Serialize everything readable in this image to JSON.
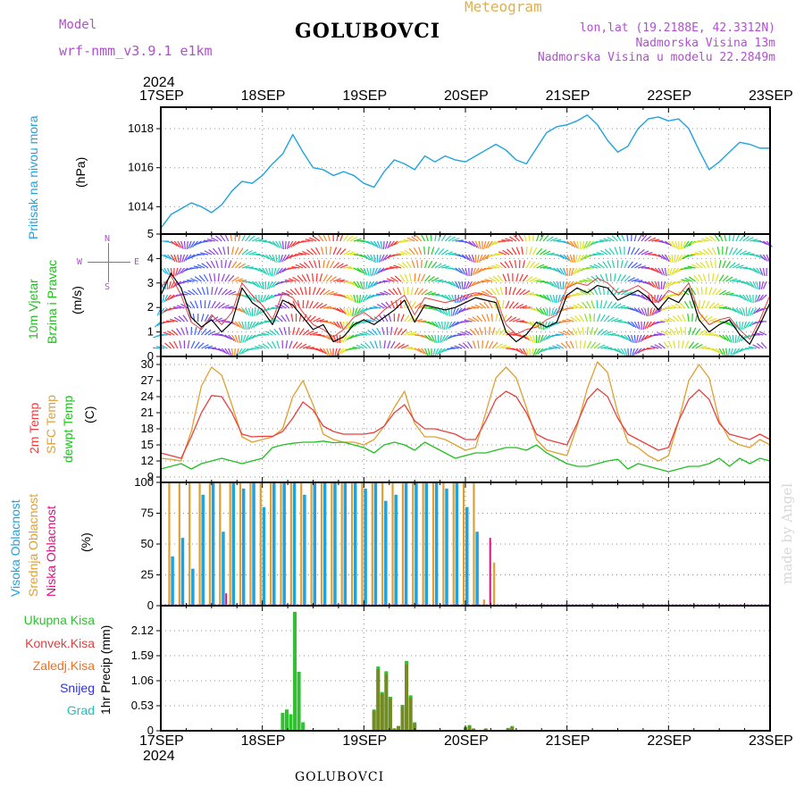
{
  "header": {
    "model_label": "Model",
    "model_name": "wrf-nmm_v3.9.1 e1km",
    "title": "GOLUBOVCI",
    "meteogram_label": "Meteogram",
    "lonlat": "lon,lat (19.2188E, 42.3312N)",
    "elevation": "Nadmorska Visina 13m",
    "model_elevation": "Nadmorska Visina u modelu 22.2849m"
  },
  "time_axis": {
    "year": "2024",
    "ticks": [
      "17SEP",
      "18SEP",
      "19SEP",
      "20SEP",
      "21SEP",
      "22SEP",
      "23SEP"
    ]
  },
  "watermark": "made by Angel",
  "footer_label": "GOLUBOVCI",
  "colors": {
    "pressure": "#1fa3e0",
    "t2m": "#e84040",
    "sfc": "#e0a030",
    "dew": "#20c020",
    "high_cloud": "#1fa3e0",
    "mid_cloud": "#e0a030",
    "low_cloud": "#e01080",
    "total_precip": "#30c030",
    "conv_precip": "#e04040",
    "frozen_precip": "#f07020",
    "snow": "#3030e0",
    "hail": "#20c0c0"
  },
  "panels": {
    "pressure": {
      "label_1": "Pritisak na nivou mora",
      "unit": "(hPa)"
    },
    "wind": {
      "label_1": "10m Vjetar",
      "label_2": "Brzina i Pravac",
      "unit": "(m/s)",
      "compass_n": "N",
      "compass_w": "W",
      "compass_e": "E",
      "compass_s": "S"
    },
    "temp": {
      "label_t2m": "2m Temp",
      "label_sfc": "SFC Temp",
      "label_dew": "dewpt Temp",
      "unit": "(C)"
    },
    "cloud": {
      "label_high": "Visoka Oblacnost",
      "label_mid": "Srednja Oblacnost",
      "label_low": "Niska Oblacnost",
      "unit": "(%)"
    },
    "precip": {
      "legend": [
        "Ukupna Kisa",
        "Konvek.Kisa",
        "Zaledj.Kisa",
        "Snijeg",
        "Grad"
      ],
      "unit": "1hr Precip (mm)"
    }
  },
  "chart_data": [
    {
      "type": "line",
      "name": "sea level pressure",
      "ylabel": "Pritisak na nivou mora (hPa)",
      "ylim": [
        1012.6,
        1019.1
      ],
      "yticks": [
        1014,
        1016,
        1018
      ],
      "x_unit": "days since 17SEP 00UTC",
      "x": [
        0,
        0.1,
        0.2,
        0.3,
        0.4,
        0.5,
        0.6,
        0.7,
        0.8,
        0.9,
        1.0,
        1.1,
        1.2,
        1.3,
        1.4,
        1.5,
        1.6,
        1.7,
        1.8,
        1.9,
        2.0,
        2.1,
        2.2,
        2.3,
        2.4,
        2.5,
        2.6,
        2.7,
        2.8,
        2.9,
        3.0,
        3.1,
        3.2,
        3.3,
        3.4,
        3.5,
        3.6,
        3.7,
        3.8,
        3.9,
        4.0,
        4.1,
        4.2,
        4.3,
        4.4,
        4.5,
        4.6,
        4.7,
        4.8,
        4.9,
        5.0,
        5.1,
        5.2,
        5.3,
        5.4,
        5.5,
        5.6,
        5.7,
        5.8,
        5.9,
        6.0
      ],
      "series": [
        {
          "name": "pressure",
          "values": [
            1012.9,
            1013.6,
            1013.9,
            1014.2,
            1014.0,
            1013.7,
            1014.1,
            1014.8,
            1015.3,
            1015.2,
            1015.6,
            1016.2,
            1016.7,
            1017.7,
            1016.8,
            1016.0,
            1015.9,
            1015.6,
            1015.8,
            1015.6,
            1015.2,
            1015.0,
            1015.8,
            1016.4,
            1016.2,
            1015.9,
            1016.6,
            1016.3,
            1016.6,
            1016.4,
            1016.3,
            1016.6,
            1016.9,
            1017.2,
            1016.9,
            1016.4,
            1016.2,
            1017.0,
            1017.8,
            1018.1,
            1018.2,
            1018.4,
            1018.7,
            1018.2,
            1017.4,
            1016.8,
            1017.1,
            1018.0,
            1018.5,
            1018.6,
            1018.4,
            1018.5,
            1018.0,
            1016.9,
            1015.9,
            1016.3,
            1016.8,
            1017.3,
            1017.2,
            1017.0,
            1017.0
          ]
        }
      ]
    },
    {
      "type": "line",
      "name": "10m wind speed",
      "ylabel": "10m Vjetar Brzina i Pravac (m/s)",
      "ylim": [
        0,
        5
      ],
      "yticks": [
        0,
        1,
        2,
        3,
        4,
        5
      ],
      "x": [
        0,
        0.1,
        0.2,
        0.3,
        0.4,
        0.5,
        0.6,
        0.7,
        0.8,
        0.9,
        1.0,
        1.1,
        1.2,
        1.3,
        1.4,
        1.5,
        1.6,
        1.7,
        1.8,
        1.9,
        2.0,
        2.1,
        2.2,
        2.3,
        2.4,
        2.5,
        2.6,
        2.7,
        2.8,
        2.9,
        3.0,
        3.1,
        3.2,
        3.3,
        3.4,
        3.5,
        3.6,
        3.7,
        3.8,
        3.9,
        4.0,
        4.1,
        4.2,
        4.3,
        4.4,
        4.5,
        4.6,
        4.7,
        4.8,
        4.9,
        5.0,
        5.1,
        5.2,
        5.3,
        5.4,
        5.5,
        5.6,
        5.7,
        5.8,
        5.9,
        6.0
      ],
      "series": [
        {
          "name": "speed",
          "values": [
            2.5,
            3.4,
            2.8,
            1.6,
            1.2,
            1.5,
            1.0,
            1.4,
            2.8,
            2.2,
            1.9,
            1.3,
            2.3,
            2.1,
            1.6,
            1.1,
            1.3,
            0.6,
            0.8,
            1.3,
            1.5,
            1.3,
            1.6,
            1.9,
            2.3,
            1.4,
            2.1,
            2.0,
            1.9,
            2.0,
            2.2,
            2.4,
            2.3,
            2.2,
            1.0,
            0.6,
            0.9,
            1.4,
            1.2,
            1.4,
            2.5,
            2.8,
            2.6,
            2.9,
            2.8,
            2.3,
            2.5,
            2.7,
            2.4,
            1.9,
            2.4,
            2.2,
            2.8,
            1.5,
            1.0,
            1.3,
            1.5,
            0.9,
            0.5,
            1.3,
            2.2
          ]
        },
        {
          "name": "gust",
          "values": [
            2.8,
            3.3,
            2.5,
            1.4,
            1.1,
            1.7,
            1.3,
            1.8,
            3.0,
            2.5,
            2.1,
            1.5,
            2.6,
            2.4,
            1.8,
            1.3,
            1.1,
            0.8,
            1.1,
            1.6,
            1.8,
            1.5,
            1.9,
            2.2,
            2.5,
            1.7,
            2.4,
            2.3,
            2.2,
            2.3,
            2.5,
            2.6,
            2.5,
            2.4,
            1.3,
            0.9,
            1.1,
            1.2,
            1.5,
            1.7,
            2.8,
            3.0,
            2.9,
            3.2,
            3.0,
            2.6,
            2.7,
            2.9,
            2.6,
            2.2,
            2.7,
            2.5,
            3.0,
            1.8,
            1.3,
            1.5,
            1.6,
            1.1,
            0.7,
            1.5,
            2.5
          ]
        }
      ]
    },
    {
      "type": "line",
      "name": "temperature",
      "ylabel": "2m Temp / SFC Temp / dewpt Temp (C)",
      "ylim": [
        8,
        31.5
      ],
      "yticks": [
        9,
        12,
        15,
        18,
        21,
        24,
        27,
        30
      ],
      "x": [
        0,
        0.1,
        0.2,
        0.3,
        0.4,
        0.5,
        0.6,
        0.7,
        0.8,
        0.9,
        1.0,
        1.1,
        1.2,
        1.3,
        1.4,
        1.5,
        1.6,
        1.7,
        1.8,
        1.9,
        2.0,
        2.1,
        2.2,
        2.3,
        2.4,
        2.5,
        2.6,
        2.7,
        2.8,
        2.9,
        3.0,
        3.1,
        3.2,
        3.3,
        3.4,
        3.5,
        3.6,
        3.7,
        3.8,
        3.9,
        4.0,
        4.1,
        4.2,
        4.3,
        4.4,
        4.5,
        4.6,
        4.7,
        4.8,
        4.9,
        5.0,
        5.1,
        5.2,
        5.3,
        5.4,
        5.5,
        5.6,
        5.7,
        5.8,
        5.9,
        6.0
      ],
      "series": [
        {
          "name": "2m Temp",
          "values": [
            13.5,
            13.0,
            12.5,
            16.5,
            21.0,
            24.2,
            24.0,
            21.0,
            17.0,
            16.5,
            16.6,
            16.6,
            17.5,
            20.0,
            23.0,
            21.5,
            18.5,
            17.5,
            17.0,
            17.0,
            17.0,
            17.3,
            18.5,
            21.0,
            22.5,
            19.5,
            18.0,
            18.0,
            17.5,
            17.0,
            16.0,
            16.0,
            19.5,
            23.5,
            25.0,
            24.0,
            21.0,
            17.0,
            16.0,
            15.5,
            15.0,
            19.0,
            23.5,
            25.5,
            24.0,
            20.0,
            17.0,
            16.0,
            15.0,
            14.0,
            14.5,
            19.5,
            23.5,
            25.3,
            23.5,
            19.0,
            17.0,
            16.5,
            16.0,
            17.0,
            16.0
          ]
        },
        {
          "name": "SFC Temp",
          "values": [
            12.5,
            12.3,
            12.0,
            17.5,
            26.0,
            29.5,
            28.0,
            22.5,
            16.5,
            15.5,
            16.0,
            16.5,
            18.0,
            24.0,
            27.0,
            22.5,
            17.0,
            16.0,
            15.5,
            15.5,
            15.0,
            16.0,
            18.5,
            22.0,
            25.0,
            19.0,
            16.5,
            16.5,
            16.0,
            15.0,
            14.0,
            14.5,
            21.0,
            27.5,
            29.5,
            27.5,
            22.0,
            16.0,
            14.0,
            13.5,
            13.0,
            18.5,
            25.5,
            30.5,
            28.5,
            21.0,
            15.5,
            14.5,
            13.0,
            12.0,
            13.0,
            19.5,
            27.0,
            30.0,
            27.5,
            19.5,
            16.0,
            15.0,
            14.5,
            16.0,
            15.0
          ]
        },
        {
          "name": "dewpt Temp",
          "values": [
            10.5,
            11.0,
            11.5,
            10.5,
            11.5,
            12.0,
            12.5,
            12.0,
            11.5,
            12.0,
            12.5,
            14.5,
            15.0,
            15.3,
            15.5,
            15.5,
            15.7,
            15.4,
            15.5,
            15.0,
            14.5,
            13.5,
            15.0,
            15.5,
            15.0,
            14.0,
            15.5,
            14.5,
            13.5,
            12.5,
            13.0,
            13.5,
            13.5,
            14.0,
            14.5,
            14.5,
            14.0,
            15.0,
            13.5,
            12.5,
            11.5,
            11.0,
            11.0,
            11.5,
            12.0,
            12.3,
            10.5,
            11.5,
            11.0,
            10.5,
            10.0,
            10.5,
            11.0,
            11.0,
            11.5,
            12.5,
            11.0,
            12.5,
            11.5,
            12.5,
            12.0
          ]
        }
      ]
    },
    {
      "type": "bar",
      "name": "cloud cover",
      "ylabel": "Visoka / Srednja / Niska Oblacnost (%)",
      "ylim": [
        0,
        100
      ],
      "yticks": [
        0,
        25,
        50,
        75,
        100
      ],
      "x": [
        0.1,
        0.2,
        0.3,
        0.4,
        0.5,
        0.6,
        0.7,
        0.8,
        0.9,
        1.0,
        1.1,
        1.2,
        1.3,
        1.4,
        1.5,
        1.6,
        1.7,
        1.8,
        1.9,
        2.0,
        2.1,
        2.2,
        2.3,
        2.4,
        2.5,
        2.6,
        2.7,
        2.8,
        2.9,
        3.0,
        3.1,
        3.2,
        3.3,
        3.4,
        3.5,
        3.6,
        3.7,
        4.0,
        4.1,
        4.2,
        4.3,
        4.4,
        4.5,
        4.6,
        4.7,
        4.8,
        4.9,
        5.0,
        5.1,
        5.2,
        5.3,
        5.4,
        5.5,
        5.6,
        5.7,
        5.8,
        5.9,
        6.0
      ],
      "series": [
        {
          "name": "high",
          "values": [
            40,
            55,
            30,
            90,
            100,
            60,
            100,
            95,
            100,
            80,
            100,
            100,
            100,
            90,
            100,
            100,
            100,
            100,
            100,
            95,
            100,
            85,
            90,
            100,
            100,
            100,
            100,
            95,
            100,
            80,
            60,
            0,
            0,
            0,
            0,
            0,
            0,
            0,
            0,
            0,
            0,
            0,
            0,
            0,
            0,
            0,
            0,
            0,
            0,
            0,
            0,
            0,
            0,
            0,
            0,
            0,
            0,
            0
          ]
        },
        {
          "name": "mid",
          "values": [
            100,
            100,
            100,
            100,
            100,
            100,
            100,
            100,
            100,
            100,
            100,
            100,
            100,
            100,
            100,
            100,
            100,
            100,
            100,
            100,
            100,
            100,
            100,
            100,
            100,
            100,
            100,
            100,
            100,
            100,
            100,
            5,
            35,
            0,
            0,
            0,
            0,
            0,
            0,
            0,
            0,
            0,
            0,
            0,
            0,
            0,
            0,
            0,
            0,
            0,
            0,
            0,
            0,
            0,
            0,
            0,
            0,
            0
          ]
        },
        {
          "name": "low",
          "values": [
            0,
            0,
            0,
            0,
            0,
            10,
            0,
            0,
            0,
            0,
            0,
            0,
            0,
            0,
            0,
            0,
            0,
            0,
            0,
            0,
            0,
            0,
            0,
            0,
            0,
            0,
            0,
            0,
            0,
            0,
            0,
            55,
            0,
            0,
            0,
            0,
            0,
            0,
            0,
            0,
            0,
            0,
            0,
            0,
            0,
            0,
            0,
            0,
            0,
            0,
            0,
            0,
            0,
            0,
            0,
            0,
            0,
            0
          ]
        }
      ]
    },
    {
      "type": "bar",
      "name": "1hr precipitation",
      "ylabel": "1hr Precip (mm)",
      "ylim": [
        0,
        2.65
      ],
      "yticks": [
        0,
        0.53,
        1.06,
        1.59,
        2.12
      ],
      "x": [
        1.2,
        1.24,
        1.28,
        1.32,
        1.36,
        1.4,
        2.1,
        2.14,
        2.18,
        2.22,
        2.26,
        2.3,
        2.34,
        2.38,
        2.42,
        2.46,
        2.5,
        3.0,
        3.04,
        3.08,
        3.2,
        3.42,
        3.46
      ],
      "series": [
        {
          "name": "Ukupna Kisa",
          "values": [
            0.38,
            0.45,
            0.35,
            2.52,
            1.25,
            0.18,
            0.45,
            1.36,
            0.82,
            1.26,
            0.72,
            0.05,
            0.1,
            0.55,
            1.48,
            0.75,
            0.18,
            0.08,
            0.12,
            0.05,
            0.05,
            0.06,
            0.1
          ]
        },
        {
          "name": "Konvek.Kisa",
          "values": [
            0,
            0,
            0,
            0,
            0,
            0,
            0.42,
            1.3,
            0.78,
            1.2,
            0.68,
            0.05,
            0.1,
            0.52,
            1.4,
            0.7,
            0.15,
            0.06,
            0.1,
            0.04,
            0.04,
            0.05,
            0.08
          ]
        }
      ]
    }
  ]
}
